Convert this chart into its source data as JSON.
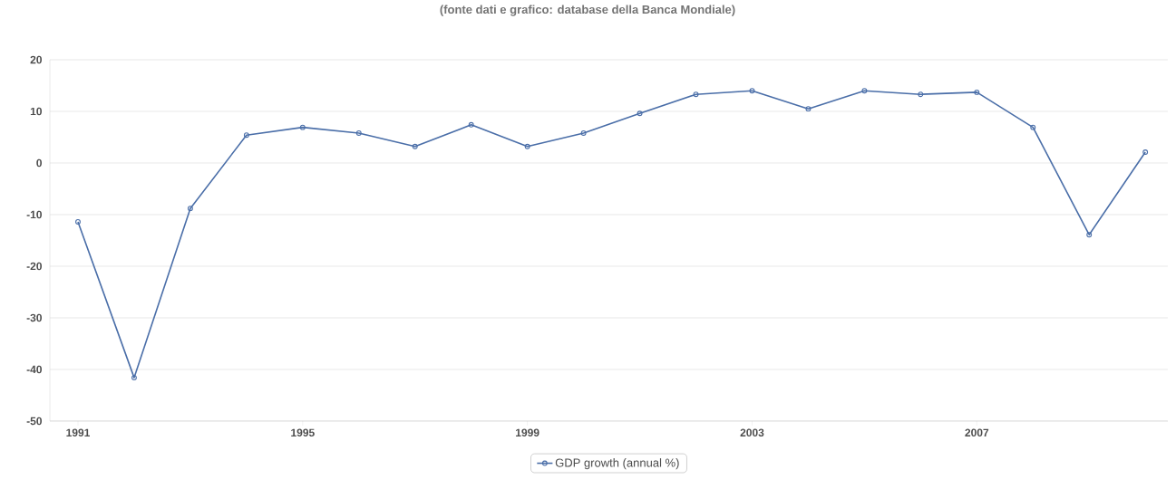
{
  "chart_data": {
    "type": "line",
    "annotations": [
      "(fonte dati e grafico: database della Banca Mondiale)"
    ],
    "x": [
      1991,
      1992,
      1993,
      1994,
      1995,
      1996,
      1997,
      1998,
      1999,
      2000,
      2001,
      2002,
      2003,
      2004,
      2005,
      2006,
      2007,
      2008,
      2009,
      2010
    ],
    "series": [
      {
        "name": "GDP growth (annual %)",
        "color": "#4a6ea8",
        "values": [
          -11.4,
          -41.6,
          -8.8,
          5.4,
          6.9,
          5.8,
          3.2,
          7.4,
          3.2,
          5.8,
          9.6,
          13.3,
          14.0,
          10.5,
          14.0,
          13.3,
          13.7,
          6.9,
          -13.9,
          2.1
        ]
      }
    ],
    "xlim": [
      1990.5,
      2010.4
    ],
    "xticks": [
      1991,
      1995,
      1999,
      2003,
      2007
    ],
    "ylim": [
      -50,
      20
    ],
    "yticks": [
      -50,
      -40,
      -30,
      -20,
      -10,
      0,
      10,
      20
    ],
    "grid": "y",
    "legend": "bottom",
    "marker": "circle",
    "line_style": "solid"
  }
}
